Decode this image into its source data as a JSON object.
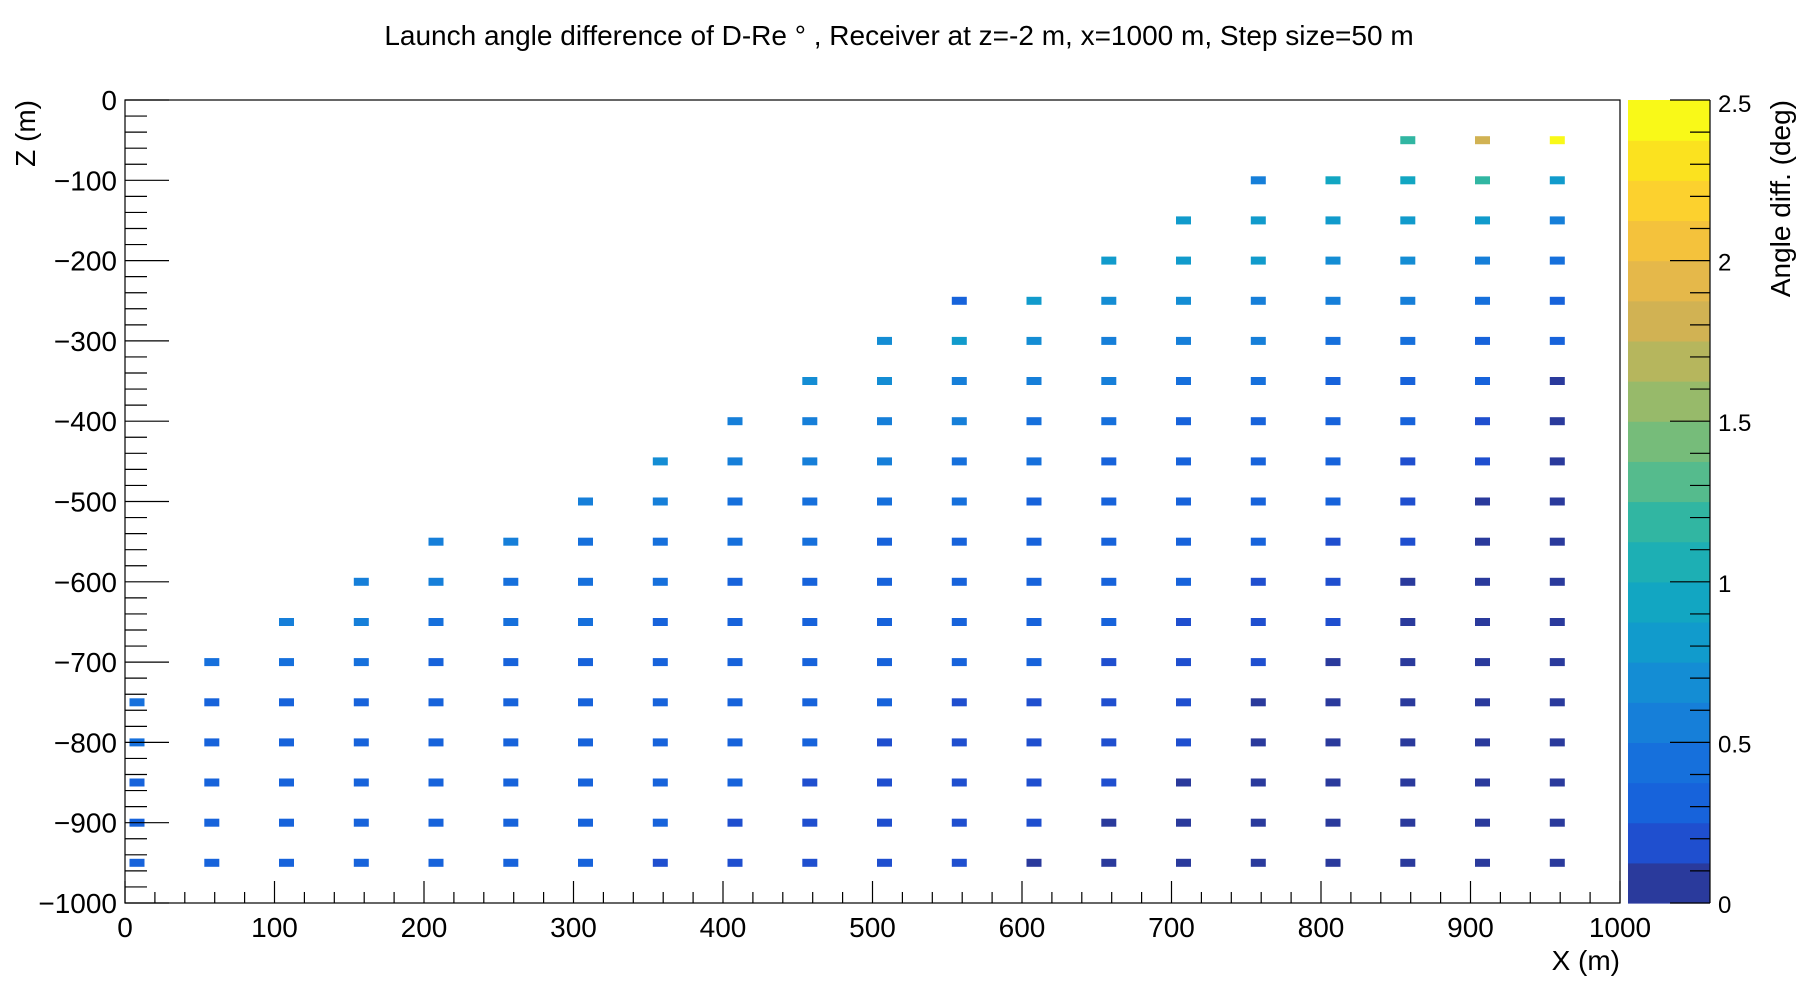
{
  "chart_data": {
    "type": "heatmap",
    "title": "Launch angle difference of D-Re ° , Receiver at z=-2 m, x=1000 m, Step size=50 m",
    "xlabel": "X (m)",
    "ylabel": "Z (m)",
    "zlabel": "Angle diff. (deg)",
    "xlim": [
      0,
      1000
    ],
    "ylim": [
      -1000,
      0
    ],
    "zlim": [
      0,
      2.5
    ],
    "x_ticks": [
      "0",
      "100",
      "200",
      "300",
      "400",
      "500",
      "600",
      "700",
      "800",
      "900",
      "1000"
    ],
    "y_ticks": [
      "0",
      "−100",
      "−200",
      "−300",
      "−400",
      "−500",
      "−600",
      "−700",
      "−800",
      "−900",
      "−1000"
    ],
    "z_ticks": [
      "0",
      "0.5",
      "1",
      "1.5",
      "2",
      "2.5"
    ],
    "grid": false,
    "palette": [
      "#2a3a9c",
      "#1f4fcf",
      "#1763db",
      "#1670dc",
      "#167fd9",
      "#148dd4",
      "#119bcc",
      "#12a6c2",
      "#1dafb4",
      "#31b6a2",
      "#55bb8d",
      "#76bc7a",
      "#97ba6a",
      "#b6b65d",
      "#d1b253",
      "#e5b84a",
      "#f4c23c",
      "#fcd12e",
      "#fbe21f",
      "#f9f918"
    ],
    "x": [
      0,
      50,
      100,
      150,
      200,
      250,
      300,
      350,
      400,
      450,
      500,
      550,
      600,
      650,
      700,
      750,
      800,
      850,
      900,
      950
    ],
    "y": [
      -50,
      -100,
      -150,
      -200,
      -250,
      -300,
      -350,
      -400,
      -450,
      -500,
      -550,
      -600,
      -650,
      -700,
      -750,
      -800,
      -850,
      -900,
      -950
    ],
    "values": [
      [
        null,
        null,
        null,
        null,
        null,
        null,
        null,
        null,
        null,
        null,
        null,
        null,
        null,
        null,
        null,
        null,
        null,
        1.15,
        1.85,
        2.4
      ],
      [
        null,
        null,
        null,
        null,
        null,
        null,
        null,
        null,
        null,
        null,
        null,
        null,
        null,
        null,
        null,
        0.5,
        0.95,
        0.95,
        1.15,
        0.85
      ],
      [
        null,
        null,
        null,
        null,
        null,
        null,
        null,
        null,
        null,
        null,
        null,
        null,
        null,
        null,
        0.8,
        0.85,
        0.8,
        0.85,
        0.75,
        0.6
      ],
      [
        null,
        null,
        null,
        null,
        null,
        null,
        null,
        null,
        null,
        null,
        null,
        null,
        null,
        0.75,
        0.75,
        0.75,
        0.65,
        0.65,
        0.55,
        0.4
      ],
      [
        null,
        null,
        null,
        null,
        null,
        null,
        null,
        null,
        null,
        null,
        null,
        0.3,
        0.8,
        0.7,
        0.7,
        0.6,
        0.55,
        0.5,
        0.45,
        0.3
      ],
      [
        null,
        null,
        null,
        null,
        null,
        null,
        null,
        null,
        null,
        null,
        0.65,
        0.75,
        0.7,
        0.6,
        0.55,
        0.5,
        0.45,
        0.4,
        0.35,
        0.25
      ],
      [
        null,
        null,
        null,
        null,
        null,
        null,
        null,
        null,
        null,
        0.65,
        0.65,
        0.6,
        0.55,
        0.5,
        0.45,
        0.4,
        0.35,
        0.3,
        0.25,
        0.1
      ],
      [
        null,
        null,
        null,
        null,
        null,
        null,
        null,
        null,
        0.6,
        0.6,
        0.55,
        0.5,
        0.45,
        0.4,
        0.35,
        0.35,
        0.3,
        0.25,
        0.2,
        0.1
      ],
      [
        null,
        null,
        null,
        null,
        null,
        null,
        null,
        0.7,
        0.55,
        0.5,
        0.5,
        0.45,
        0.4,
        0.35,
        0.3,
        0.3,
        0.25,
        0.2,
        0.15,
        0.1
      ],
      [
        null,
        null,
        null,
        null,
        null,
        null,
        0.55,
        0.5,
        0.45,
        0.45,
        0.4,
        0.4,
        0.35,
        0.3,
        0.3,
        0.25,
        0.25,
        0.2,
        0.1,
        0.1
      ],
      [
        null,
        null,
        null,
        null,
        0.55,
        0.55,
        0.45,
        0.45,
        0.4,
        0.4,
        0.35,
        0.35,
        0.3,
        0.3,
        0.25,
        0.25,
        0.2,
        0.2,
        0.1,
        0.1
      ],
      [
        null,
        null,
        null,
        0.55,
        0.5,
        0.45,
        0.4,
        0.4,
        0.35,
        0.35,
        0.3,
        0.3,
        0.3,
        0.25,
        0.25,
        0.2,
        0.2,
        0.1,
        0.1,
        0.1
      ],
      [
        null,
        null,
        0.5,
        0.5,
        0.45,
        0.4,
        0.4,
        0.35,
        0.35,
        0.3,
        0.3,
        0.3,
        0.25,
        0.25,
        0.2,
        0.2,
        0.2,
        0.1,
        0.1,
        0.05
      ],
      [
        null,
        0.45,
        0.4,
        0.4,
        0.35,
        0.35,
        0.35,
        0.3,
        0.3,
        0.3,
        0.25,
        0.25,
        0.25,
        0.2,
        0.2,
        0.2,
        0.1,
        0.1,
        0.1,
        0.05
      ],
      [
        0.4,
        0.35,
        0.35,
        0.35,
        0.3,
        0.3,
        0.3,
        0.3,
        0.25,
        0.25,
        0.25,
        0.2,
        0.2,
        0.2,
        0.2,
        0.1,
        0.1,
        0.1,
        0.05,
        0.05
      ],
      [
        0.4,
        0.35,
        0.35,
        0.3,
        0.3,
        0.3,
        0.25,
        0.25,
        0.25,
        0.25,
        0.2,
        0.2,
        0.2,
        0.2,
        0.2,
        0.1,
        0.1,
        0.1,
        0.05,
        0.05
      ],
      [
        0.35,
        0.35,
        0.3,
        0.3,
        0.3,
        0.25,
        0.25,
        0.25,
        0.25,
        0.2,
        0.2,
        0.2,
        0.2,
        0.2,
        0.1,
        0.1,
        0.1,
        0.05,
        0.05,
        0.05
      ],
      [
        0.35,
        0.3,
        0.3,
        0.3,
        0.25,
        0.25,
        0.25,
        0.25,
        0.2,
        0.2,
        0.2,
        0.2,
        0.2,
        0.1,
        0.1,
        0.1,
        0.05,
        0.05,
        0.05,
        0.05
      ],
      [
        0.3,
        0.3,
        0.3,
        0.25,
        0.25,
        0.25,
        0.25,
        0.2,
        0.2,
        0.2,
        0.2,
        0.2,
        0.1,
        0.1,
        0.1,
        0.05,
        0.05,
        0.05,
        0.05,
        0.05
      ]
    ]
  }
}
